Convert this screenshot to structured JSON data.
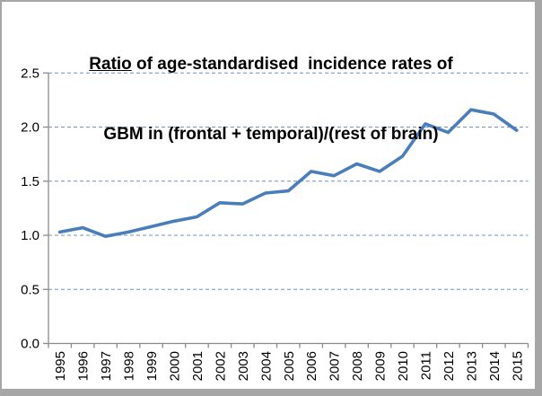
{
  "title": {
    "underlined_word": "Ratio",
    "line1_rest": " of age-standardised  incidence rates of",
    "line2": "GBM in (frontal + temporal)/(rest of brain)"
  },
  "chart_data": {
    "type": "line",
    "title": "Ratio of age-standardised incidence rates of GBM in (frontal + temporal)/(rest of brain)",
    "x": [
      "1995",
      "1996",
      "1997",
      "1998",
      "1999",
      "2000",
      "2001",
      "2002",
      "2003",
      "2004",
      "2005",
      "2006",
      "2007",
      "2008",
      "2009",
      "2010",
      "2011",
      "2012",
      "2013",
      "2014",
      "2015"
    ],
    "values": [
      1.03,
      1.07,
      0.99,
      1.03,
      1.08,
      1.13,
      1.17,
      1.3,
      1.29,
      1.39,
      1.41,
      1.59,
      1.55,
      1.66,
      1.59,
      1.73,
      2.03,
      1.95,
      2.16,
      2.12,
      1.97
    ],
    "ylim": [
      0,
      2.5
    ],
    "ytick_step": 0.5,
    "ytick_labels": [
      "0.0",
      "0.5",
      "1.0",
      "1.5",
      "2.0",
      "2.5"
    ],
    "grid": "horizontal-dashed",
    "legend": "none"
  },
  "colors": {
    "line": "#4a7ebb",
    "gridline": "#4f81bd",
    "axis": "#8a8a8a",
    "tick": "#8a8a8a",
    "frame_border": "#a6a6a6",
    "text": "#000000",
    "background": "#ffffff"
  }
}
